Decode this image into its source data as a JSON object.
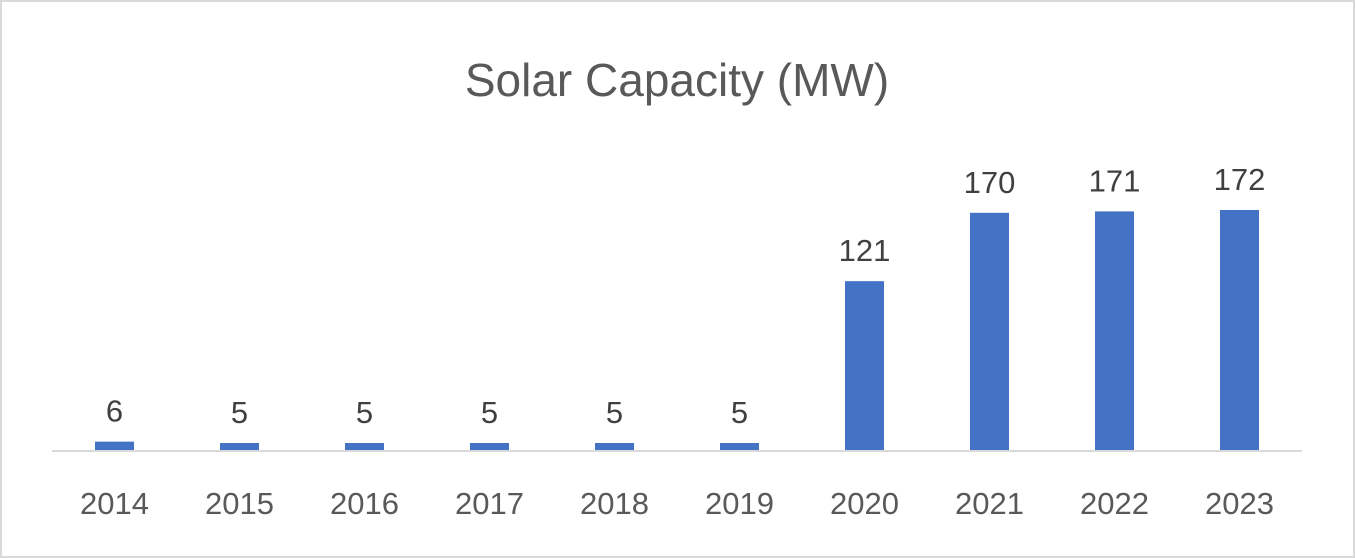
{
  "chart_data": {
    "type": "bar",
    "title": "Solar Capacity (MW)",
    "xlabel": "",
    "ylabel": "",
    "categories": [
      "2014",
      "2015",
      "2016",
      "2017",
      "2018",
      "2019",
      "2020",
      "2021",
      "2022",
      "2023"
    ],
    "values": [
      6,
      5,
      5,
      5,
      5,
      5,
      121,
      170,
      171,
      172
    ],
    "ylim": [
      0,
      172
    ],
    "grid": false,
    "legend": "none",
    "data_labels": true,
    "bar_color": "#4472C4"
  }
}
